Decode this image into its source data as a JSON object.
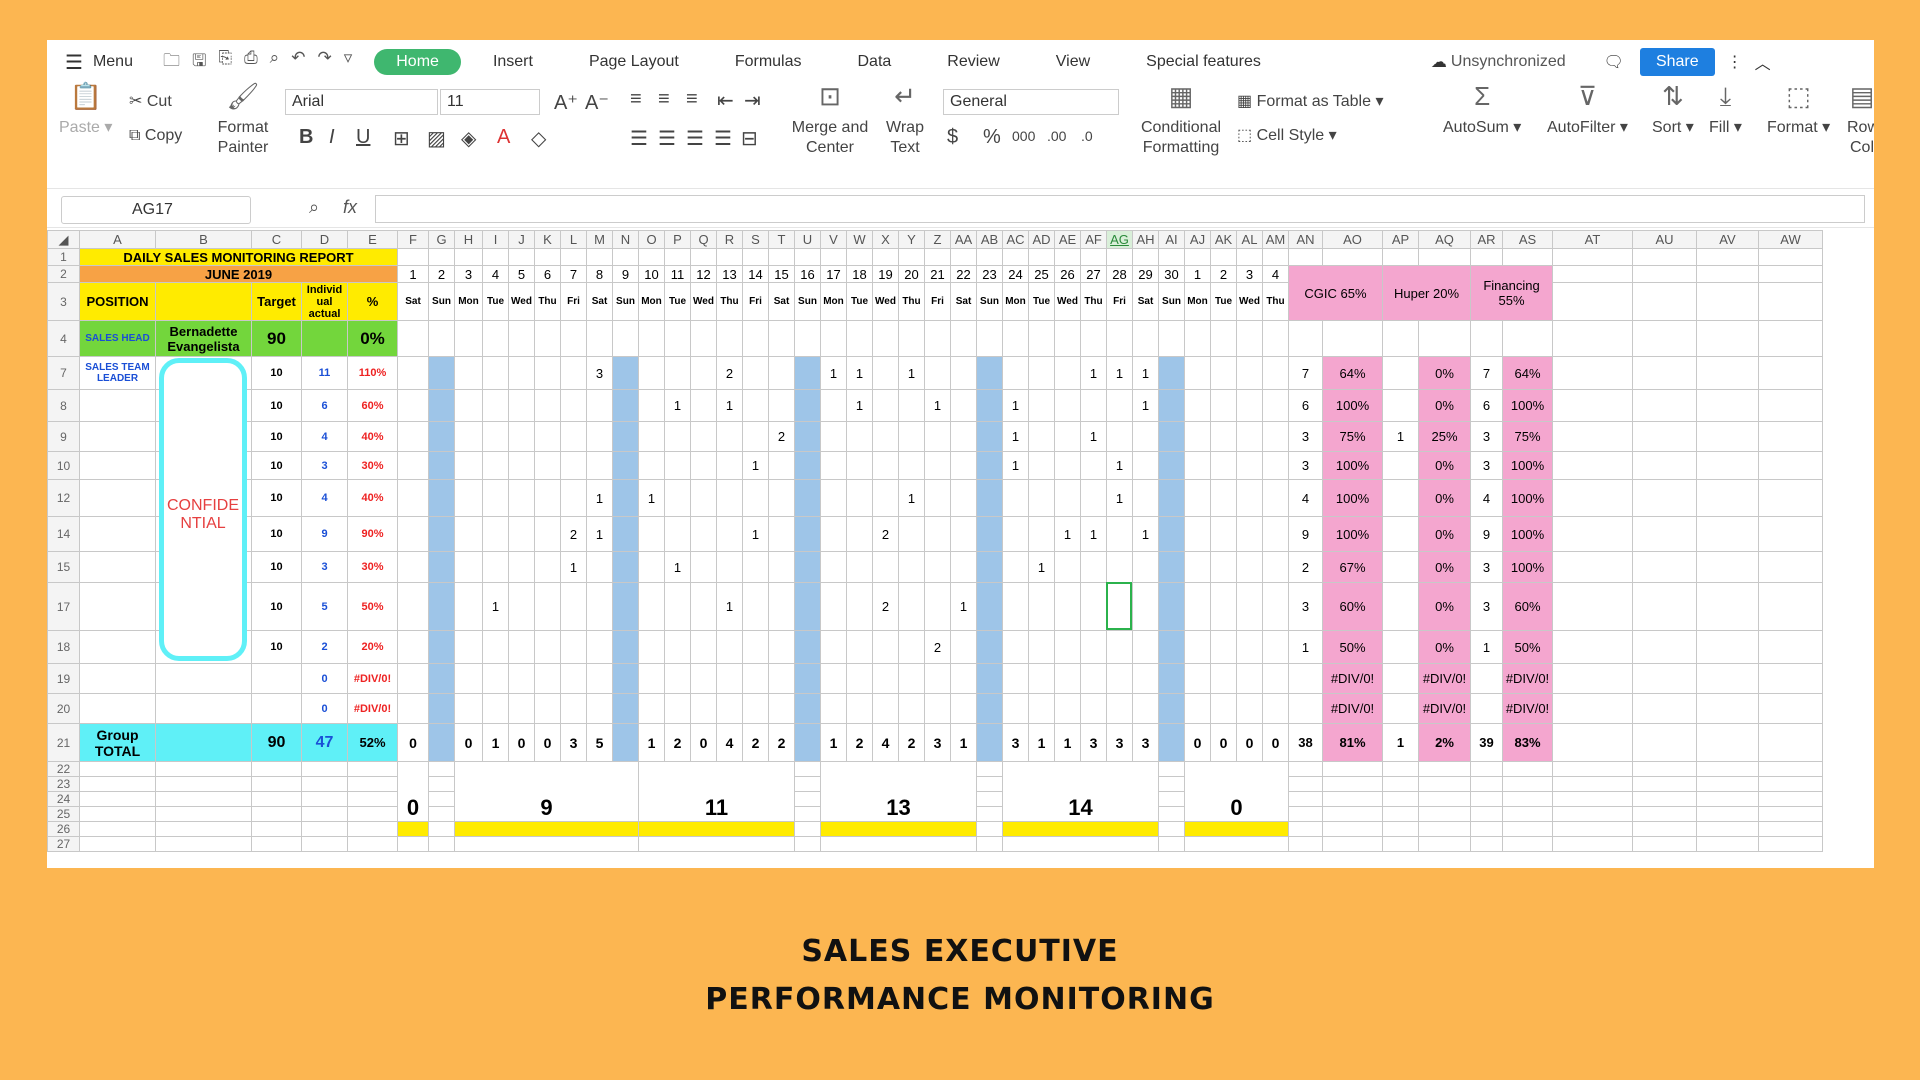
{
  "menubar": {
    "menu_label": "Menu",
    "tabs": [
      "Home",
      "Insert",
      "Page Layout",
      "Formulas",
      "Data",
      "Review",
      "View",
      "Special features"
    ],
    "sync": "Unsynchronized",
    "share": "Share"
  },
  "ribbon": {
    "paste": "Paste",
    "cut": "Cut",
    "copy": "Copy",
    "format_painter": "Format Painter",
    "font": "Arial",
    "size": "11",
    "merge": "Merge and Center",
    "wrap": "Wrap Text",
    "number_format": "General",
    "cond_format": "Conditional Formatting",
    "format_table": "Format as Table",
    "cell_style": "Cell Style",
    "autosum": "AutoSum",
    "autofilter": "AutoFilter",
    "sort": "Sort",
    "fill": "Fill",
    "format": "Format",
    "rowcol": "Row Col"
  },
  "formula": {
    "cell_ref": "AG17",
    "fx": "fx"
  },
  "columns": [
    "A",
    "B",
    "C",
    "D",
    "E",
    "F",
    "G",
    "H",
    "I",
    "J",
    "K",
    "L",
    "M",
    "N",
    "O",
    "P",
    "Q",
    "R",
    "S",
    "T",
    "U",
    "V",
    "W",
    "X",
    "Y",
    "Z",
    "AA",
    "AB",
    "AC",
    "AD",
    "AE",
    "AF",
    "AG",
    "AH",
    "AI",
    "AJ",
    "AK",
    "AL",
    "AM",
    "AN",
    "AO",
    "AP",
    "AQ",
    "AR",
    "AS",
    "AT",
    "AU",
    "AV",
    "AW"
  ],
  "sheet": {
    "title": "DAILY SALES MONITORING REPORT",
    "month": "JUNE 2019",
    "hdr_position": "POSITION",
    "hdr_target": "Target",
    "hdr_actual": "Individ ual actual",
    "hdr_pct": "%",
    "cgic": "CGIC 65%",
    "huper": "Huper 20%",
    "financing": "Financing 55%",
    "days": [
      "1",
      "2",
      "3",
      "4",
      "5",
      "6",
      "7",
      "8",
      "9",
      "10",
      "11",
      "12",
      "13",
      "14",
      "15",
      "16",
      "17",
      "18",
      "19",
      "20",
      "21",
      "22",
      "23",
      "24",
      "25",
      "26",
      "27",
      "28",
      "29",
      "30",
      "1",
      "2",
      "3",
      "4"
    ],
    "weekdays": [
      "Sat",
      "Sun",
      "Mon",
      "Tue",
      "Wed",
      "Thu",
      "Fri",
      "Sat",
      "Sun",
      "Mon",
      "Tue",
      "Wed",
      "Thu",
      "Fri",
      "Sat",
      "Sun",
      "Mon",
      "Tue",
      "Wed",
      "Thu",
      "Fri",
      "Sat",
      "Sun",
      "Mon",
      "Tue",
      "Wed",
      "Thu",
      "Fri",
      "Sat",
      "Sun",
      "Mon",
      "Tue",
      "Wed",
      "Thu"
    ],
    "head_role": "SALES HEAD",
    "head_name": "Bernadette Evangelista",
    "head_target": "90",
    "head_pct": "0%",
    "leader_role": "SALES TEAM LEADER",
    "confidential": "CONFIDE NTIAL",
    "rows": [
      {
        "row": "7",
        "target": "10",
        "actual": "11",
        "pct": "110%",
        "cells": {
          "8": "3",
          "13": "2",
          "17": "1",
          "18": "1",
          "20": "1",
          "27": "1",
          "28": "1",
          "29": "1"
        },
        "an": "7",
        "ao": "64%",
        "ap": "",
        "aq": "0%",
        "ar": "7",
        "as": "64%"
      },
      {
        "row": "8",
        "target": "10",
        "actual": "6",
        "pct": "60%",
        "cells": {
          "11": "1",
          "13": "1",
          "18": "1",
          "21": "1",
          "24": "1",
          "29": "1"
        },
        "an": "6",
        "ao": "100%",
        "ap": "",
        "aq": "0%",
        "ar": "6",
        "as": "100%"
      },
      {
        "row": "9",
        "target": "10",
        "actual": "4",
        "pct": "40%",
        "cells": {
          "15": "2",
          "24": "1",
          "27": "1"
        },
        "an": "3",
        "ao": "75%",
        "ap": "1",
        "aq": "25%",
        "ar": "3",
        "as": "75%"
      },
      {
        "row": "10",
        "target": "10",
        "actual": "3",
        "pct": "30%",
        "cells": {
          "14": "1",
          "24": "1",
          "28": "1"
        },
        "an": "3",
        "ao": "100%",
        "ap": "",
        "aq": "0%",
        "ar": "3",
        "as": "100%"
      },
      {
        "row": "12",
        "target": "10",
        "actual": "4",
        "pct": "40%",
        "cells": {
          "8": "1",
          "10": "1",
          "20": "1",
          "28": "1"
        },
        "an": "4",
        "ao": "100%",
        "ap": "",
        "aq": "0%",
        "ar": "4",
        "as": "100%"
      },
      {
        "row": "14",
        "target": "10",
        "actual": "9",
        "pct": "90%",
        "cells": {
          "7": "2",
          "8": "1",
          "14": "1",
          "19": "2",
          "26": "1",
          "27": "1",
          "29": "1"
        },
        "an": "9",
        "ao": "100%",
        "ap": "",
        "aq": "0%",
        "ar": "9",
        "as": "100%"
      },
      {
        "row": "15",
        "target": "10",
        "actual": "3",
        "pct": "30%",
        "cells": {
          "7": "1",
          "11": "1",
          "25": "1"
        },
        "an": "2",
        "ao": "67%",
        "ap": "",
        "aq": "0%",
        "ar": "3",
        "as": "100%"
      },
      {
        "row": "17",
        "target": "10",
        "actual": "5",
        "pct": "50%",
        "cells": {
          "4": "1",
          "13": "1",
          "19": "2",
          "22": "1"
        },
        "an": "3",
        "ao": "60%",
        "ap": "",
        "aq": "0%",
        "ar": "3",
        "as": "60%"
      },
      {
        "row": "18",
        "target": "10",
        "actual": "2",
        "pct": "20%",
        "cells": {
          "21": "2"
        },
        "an": "1",
        "ao": "50%",
        "ap": "",
        "aq": "0%",
        "ar": "1",
        "as": "50%"
      },
      {
        "row": "19",
        "target": "",
        "actual": "0",
        "pct": "#DIV/0!",
        "cells": {},
        "an": "",
        "ao": "#DIV/0!",
        "ap": "",
        "aq": "#DIV/0!",
        "ar": "",
        "as": "#DIV/0!"
      },
      {
        "row": "20",
        "target": "",
        "actual": "0",
        "pct": "#DIV/0!",
        "cells": {},
        "an": "",
        "ao": "#DIV/0!",
        "ap": "",
        "aq": "#DIV/0!",
        "ar": "",
        "as": "#DIV/0!"
      }
    ],
    "total_label": "Group TOTAL",
    "total_target": "90",
    "total_actual": "47",
    "total_pct": "52%",
    "total_days": [
      "0",
      "",
      "0",
      "1",
      "0",
      "0",
      "3",
      "5",
      "",
      "1",
      "2",
      "0",
      "4",
      "2",
      "2",
      "",
      "1",
      "2",
      "4",
      "2",
      "3",
      "1",
      "",
      "3",
      "1",
      "1",
      "3",
      "3",
      "3",
      "",
      "0",
      "0",
      "0",
      "0"
    ],
    "total_an": "38",
    "total_ao": "81%",
    "total_ap": "1",
    "total_aq": "2%",
    "total_ar": "39",
    "total_as": "83%",
    "weekly": [
      "0",
      "9",
      "11",
      "13",
      "14",
      "0"
    ]
  },
  "caption": {
    "line1": "SALES EXECUTIVE",
    "line2": "PERFORMANCE MONITORING"
  }
}
